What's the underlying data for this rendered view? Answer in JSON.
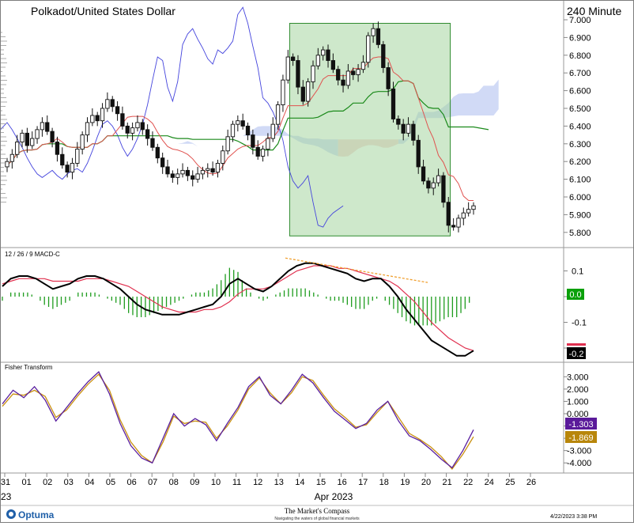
{
  "header": {
    "title": "Polkadot/United States Dollar",
    "timeframe": "240 Minute"
  },
  "panels": {
    "macd": {
      "label": "12 / 26 / 9 MACD-C"
    },
    "fisher": {
      "label": "Fisher Transform"
    }
  },
  "footer": {
    "brand": "Optuma",
    "center_title": "The Market's Compass",
    "center_tagline": "Navigating the waters of global financial markets",
    "timestamp": "4/22/2023 3:38 PM"
  },
  "colors": {
    "candle": "#111111",
    "tenkan": "#e0524f",
    "kijun": "#1b8a1b",
    "chikou": "#4444dd",
    "cloud_bull": "#c9d4f5",
    "cloud_bear": "#f6cccc",
    "highlight_fill": "#a5d6a0",
    "highlight_stroke": "#2e8b2e",
    "macd_line": "#000000",
    "macd_signal": "#e0304f",
    "macd_hist": "#1e9c1e",
    "trendline": "#f0a030",
    "fisher_1": "#5a20a0",
    "fisher_2": "#c9900f",
    "badge_zero": "#0aa00a",
    "badge_neg": "#000000",
    "badge_fisher1": "#5a1a9a",
    "badge_fisher2": "#b8860b"
  },
  "chart_data": [
    {
      "type": "candlestick",
      "title": "Polkadot/United States Dollar",
      "interval": "240 Minute",
      "ylim": [
        5.75,
        7.0
      ],
      "y_ticks": [
        "5.800",
        "5.900",
        "6.000",
        "6.100",
        "6.200",
        "6.300",
        "6.400",
        "6.500",
        "6.600",
        "6.700",
        "6.800",
        "6.900",
        "7.000"
      ],
      "x_tick_labels": [
        "31",
        "01",
        "02",
        "03",
        "04",
        "05",
        "06",
        "07",
        "08",
        "09",
        "10",
        "11",
        "12",
        "13",
        "14",
        "15",
        "16",
        "17",
        "18",
        "19",
        "20",
        "21",
        "22",
        "24",
        "25",
        "26"
      ],
      "x_axis_label": "Apr 2023",
      "x_axis_left_fragment": "23",
      "closes": [
        6.2,
        6.24,
        6.31,
        6.36,
        6.29,
        6.33,
        6.38,
        6.42,
        6.37,
        6.31,
        6.24,
        6.18,
        6.14,
        6.19,
        6.27,
        6.35,
        6.42,
        6.46,
        6.43,
        6.5,
        6.55,
        6.51,
        6.47,
        6.4,
        6.36,
        6.39,
        6.42,
        6.38,
        6.33,
        6.28,
        6.22,
        6.17,
        6.13,
        6.11,
        6.13,
        6.15,
        6.12,
        6.1,
        6.13,
        6.15,
        6.16,
        6.14,
        6.19,
        6.26,
        6.34,
        6.41,
        6.43,
        6.4,
        6.35,
        6.28,
        6.23,
        6.27,
        6.33,
        6.41,
        6.52,
        6.66,
        6.79,
        6.77,
        6.62,
        6.54,
        6.65,
        6.74,
        6.8,
        6.83,
        6.77,
        6.72,
        6.66,
        6.63,
        6.71,
        6.69,
        6.72,
        6.76,
        6.91,
        6.95,
        6.86,
        6.73,
        6.61,
        6.44,
        6.41,
        6.36,
        6.41,
        6.32,
        6.17,
        6.09,
        6.05,
        6.08,
        6.12,
        5.97,
        5.84,
        5.83,
        5.88,
        5.91,
        5.93,
        5.95
      ],
      "ichimoku": {
        "tenkan_last": 5.96,
        "kijun_last": 6.38,
        "cloud_range": [
          6.18,
          6.63
        ]
      },
      "highlight_region": {
        "x_start": "14",
        "x_end": "21",
        "y_start": 5.78,
        "y_end": 6.98
      }
    },
    {
      "type": "line",
      "title": "12 / 26 / 9 MACD-C",
      "y_ticks": [
        "0.1",
        "0.0",
        "-0.1",
        "-0.2"
      ],
      "ylim": [
        -0.24,
        0.16
      ],
      "series": [
        {
          "name": "MACD",
          "values": [
            0.04,
            0.07,
            0.08,
            0.08,
            0.07,
            0.05,
            0.03,
            0.04,
            0.05,
            0.07,
            0.08,
            0.08,
            0.07,
            0.05,
            0.03,
            0.0,
            -0.03,
            -0.05,
            -0.06,
            -0.07,
            -0.07,
            -0.07,
            -0.06,
            -0.05,
            -0.04,
            -0.03,
            0.0,
            0.05,
            0.07,
            0.05,
            0.03,
            0.02,
            0.04,
            0.07,
            0.1,
            0.12,
            0.13,
            0.13,
            0.12,
            0.11,
            0.1,
            0.09,
            0.07,
            0.06,
            0.07,
            0.07,
            0.04,
            0.0,
            -0.05,
            -0.09,
            -0.13,
            -0.17,
            -0.19,
            -0.21,
            -0.23,
            -0.23,
            -0.21
          ]
        },
        {
          "name": "Signal",
          "values": [
            0.05,
            0.06,
            0.07,
            0.07,
            0.07,
            0.07,
            0.06,
            0.06,
            0.06,
            0.06,
            0.07,
            0.07,
            0.07,
            0.06,
            0.05,
            0.04,
            0.02,
            0.0,
            -0.02,
            -0.04,
            -0.05,
            -0.06,
            -0.06,
            -0.06,
            -0.05,
            -0.05,
            -0.04,
            -0.02,
            0.01,
            0.03,
            0.03,
            0.03,
            0.04,
            0.06,
            0.08,
            0.1,
            0.11,
            0.12,
            0.12,
            0.12,
            0.11,
            0.11,
            0.1,
            0.09,
            0.08,
            0.07,
            0.06,
            0.04,
            0.01,
            -0.02,
            -0.06,
            -0.1,
            -0.13,
            -0.16,
            -0.18,
            -0.2,
            -0.21
          ]
        }
      ],
      "readouts": [
        "0.0",
        "-0.2"
      ]
    },
    {
      "type": "line",
      "title": "Fisher Transform",
      "y_ticks": [
        "3.000",
        "2.000",
        "1.000",
        "0.000",
        "-1.000",
        "-2.000",
        "-3.000",
        "-4.000"
      ],
      "ylim": [
        -4.5,
        3.6
      ],
      "series": [
        {
          "name": "Fisher",
          "values": [
            0.8,
            1.9,
            1.3,
            2.2,
            1.1,
            -0.6,
            0.5,
            1.6,
            2.6,
            3.4,
            1.6,
            -0.8,
            -2.6,
            -3.6,
            -4.0,
            -2.0,
            0.0,
            -1.0,
            -0.4,
            -0.9,
            -2.2,
            -0.8,
            0.5,
            2.2,
            3.0,
            1.5,
            0.8,
            1.9,
            3.2,
            2.5,
            1.3,
            0.2,
            -0.5,
            -1.2,
            -0.8,
            0.3,
            1.0,
            -0.6,
            -1.8,
            -2.2,
            -2.9,
            -3.7,
            -4.4,
            -3.0,
            -1.303
          ]
        },
        {
          "name": "Trigger",
          "values": [
            0.6,
            1.6,
            1.5,
            1.9,
            1.4,
            -0.3,
            0.3,
            1.4,
            2.4,
            3.2,
            1.9,
            -0.5,
            -2.3,
            -3.4,
            -4.0,
            -2.3,
            -0.2,
            -0.8,
            -0.6,
            -0.7,
            -2.0,
            -1.0,
            0.3,
            2.0,
            2.9,
            1.7,
            0.8,
            1.7,
            3.0,
            2.7,
            1.5,
            0.4,
            -0.3,
            -1.1,
            -0.9,
            0.1,
            1.0,
            -0.3,
            -1.6,
            -2.1,
            -2.7,
            -3.5,
            -4.5,
            -3.3,
            -1.869
          ]
        }
      ],
      "readouts": [
        "-1.303",
        "-1.869"
      ]
    }
  ]
}
